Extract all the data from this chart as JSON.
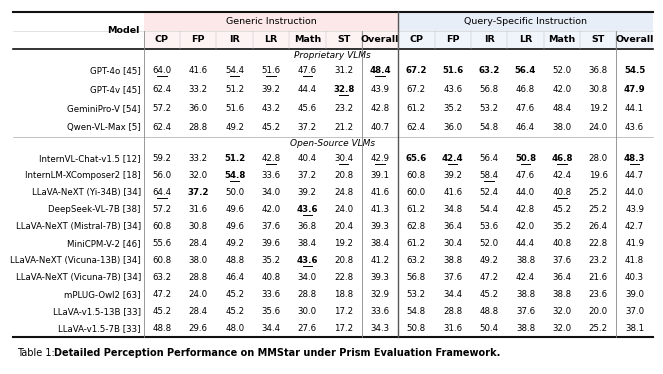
{
  "header2": [
    "Model",
    "CP",
    "FP",
    "IR",
    "LR",
    "Math",
    "ST",
    "Overall",
    "CP",
    "FP",
    "IR",
    "LR",
    "Math",
    "ST",
    "Overall"
  ],
  "section1_label": "Proprietary VLMs",
  "section2_label": "Open-Source VLMs",
  "rows_prop": [
    [
      "GPT-4o [45]",
      "64.0",
      "41.6",
      "54.4",
      "51.6",
      "47.6",
      "31.2",
      "48.4",
      "67.2",
      "51.6",
      "63.2",
      "56.4",
      "52.0",
      "36.8",
      "54.5"
    ],
    [
      "GPT-4v [45]",
      "62.4",
      "33.2",
      "51.2",
      "39.2",
      "44.4",
      "32.8",
      "43.9",
      "67.2",
      "43.6",
      "56.8",
      "46.8",
      "42.0",
      "30.8",
      "47.9"
    ],
    [
      "GeminiPro-V [54]",
      "57.2",
      "36.0",
      "51.6",
      "43.2",
      "45.6",
      "23.2",
      "42.8",
      "61.2",
      "35.2",
      "53.2",
      "47.6",
      "48.4",
      "19.2",
      "44.1"
    ],
    [
      "Qwen-VL-Max [5]",
      "62.4",
      "28.8",
      "49.2",
      "45.2",
      "37.2",
      "21.2",
      "40.7",
      "62.4",
      "36.0",
      "54.8",
      "46.4",
      "38.0",
      "24.0",
      "43.6"
    ]
  ],
  "rows_open": [
    [
      "InternVL-Chat-v1.5 [12]",
      "59.2",
      "33.2",
      "51.2",
      "42.8",
      "40.4",
      "30.4",
      "42.9",
      "65.6",
      "42.4",
      "56.4",
      "50.8",
      "46.8",
      "28.0",
      "48.3"
    ],
    [
      "InternLM-XComposer2 [18]",
      "56.0",
      "32.0",
      "54.8",
      "33.6",
      "37.2",
      "20.8",
      "39.1",
      "60.8",
      "39.2",
      "58.4",
      "47.6",
      "42.4",
      "19.6",
      "44.7"
    ],
    [
      "LLaVA-NeXT (Yi-34B) [34]",
      "64.4",
      "37.2",
      "50.0",
      "34.0",
      "39.2",
      "24.8",
      "41.6",
      "60.0",
      "41.6",
      "52.4",
      "44.0",
      "40.8",
      "25.2",
      "44.0"
    ],
    [
      "DeepSeek-VL-7B [38]",
      "57.2",
      "31.6",
      "49.6",
      "42.0",
      "43.6",
      "24.0",
      "41.3",
      "61.2",
      "34.8",
      "54.4",
      "42.8",
      "45.2",
      "25.2",
      "43.9"
    ],
    [
      "LLaVA-NeXT (Mistral-7B) [34]",
      "60.8",
      "30.8",
      "49.6",
      "37.6",
      "36.8",
      "20.4",
      "39.3",
      "62.8",
      "36.4",
      "53.6",
      "42.0",
      "35.2",
      "26.4",
      "42.7"
    ],
    [
      "MiniCPM-V-2 [46]",
      "55.6",
      "28.4",
      "49.2",
      "39.6",
      "38.4",
      "19.2",
      "38.4",
      "61.2",
      "30.4",
      "52.0",
      "44.4",
      "40.8",
      "22.8",
      "41.9"
    ],
    [
      "LLaVA-NeXT (Vicuna-13B) [34]",
      "60.8",
      "38.0",
      "48.8",
      "35.2",
      "43.6",
      "20.8",
      "41.2",
      "63.2",
      "38.8",
      "49.2",
      "38.8",
      "37.6",
      "23.2",
      "41.8"
    ],
    [
      "LLaVA-NeXT (Vicuna-7B) [34]",
      "63.2",
      "28.8",
      "46.4",
      "40.8",
      "34.0",
      "22.8",
      "39.3",
      "56.8",
      "37.6",
      "47.2",
      "42.4",
      "36.4",
      "21.6",
      "40.3"
    ],
    [
      "mPLUG-Owl2 [63]",
      "47.2",
      "24.0",
      "45.2",
      "33.6",
      "28.8",
      "18.8",
      "32.9",
      "53.2",
      "34.4",
      "45.2",
      "38.8",
      "38.8",
      "23.6",
      "39.0"
    ],
    [
      "LLaVA-v1.5-13B [33]",
      "45.2",
      "28.4",
      "45.2",
      "35.6",
      "30.0",
      "17.2",
      "33.6",
      "54.8",
      "28.8",
      "48.8",
      "37.6",
      "32.0",
      "20.0",
      "37.0"
    ],
    [
      "LLaVA-v1.5-7B [33]",
      "48.8",
      "29.6",
      "48.0",
      "34.4",
      "27.6",
      "17.2",
      "34.3",
      "50.8",
      "31.6",
      "50.4",
      "38.8",
      "32.0",
      "25.2",
      "38.1"
    ]
  ],
  "underline_prop": {
    "0": [
      1,
      3,
      4,
      5,
      7
    ],
    "1": [
      6
    ],
    "2": [],
    "3": []
  },
  "underline_open": {
    "0": [
      4,
      6,
      7,
      9,
      11,
      12,
      14
    ],
    "1": [
      3,
      10
    ],
    "2": [
      1,
      12
    ],
    "3": [
      5
    ],
    "4": [],
    "5": [],
    "6": [
      5
    ],
    "7": [],
    "8": [],
    "9": [],
    "10": []
  },
  "bold_prop": {
    "0": [
      7,
      8,
      9,
      10,
      11,
      14
    ],
    "1": [
      6,
      14
    ],
    "2": [],
    "3": []
  },
  "bold_open": {
    "0": [
      3,
      8,
      9,
      11,
      12,
      14
    ],
    "1": [
      3
    ],
    "2": [
      2
    ],
    "3": [
      5
    ],
    "4": [],
    "5": [],
    "6": [
      5
    ],
    "7": [],
    "8": [],
    "9": [],
    "10": []
  },
  "generic_bg": "#fce8e8",
  "query_bg": "#e8eef8",
  "caption_prefix": "Table 1: ",
  "caption_bold": "Detailed Perception Performance on MMStar under Prism Evaluation Framework."
}
